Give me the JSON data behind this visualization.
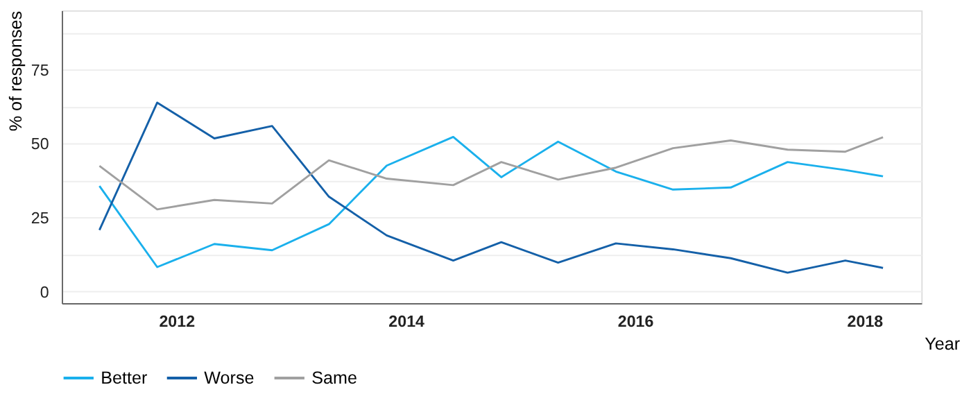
{
  "chart_data": {
    "type": "line",
    "xlabel": "Year",
    "ylabel": "% of responses",
    "x": [
      "2011-05",
      "2011-11",
      "2012-05",
      "2012-11",
      "2013-05",
      "2013-11",
      "2014-06",
      "2014-11",
      "2015-05",
      "2015-11",
      "2016-05",
      "2016-11",
      "2017-05",
      "2017-11",
      "2018-03"
    ],
    "series": [
      {
        "name": "Better",
        "color": "#1ab0ec",
        "values": [
          35.6,
          8.2,
          16,
          13.9,
          22.7,
          42.5,
          52.2,
          38.6,
          50.6,
          40.5,
          34.4,
          35.1,
          43.7,
          41,
          38.9
        ]
      },
      {
        "name": "Worse",
        "color": "#1460a8",
        "values": [
          20.7,
          63.8,
          51.7,
          55.9,
          32,
          18.9,
          10.4,
          16.6,
          9.7,
          16.2,
          14.2,
          11.2,
          6.3,
          10.4,
          7.9
        ]
      },
      {
        "name": "Same",
        "color": "#a0a0a0",
        "values": [
          42.4,
          27.7,
          30.9,
          29.7,
          44.3,
          38.1,
          35.9,
          43.7,
          37.8,
          41.8,
          48.4,
          51,
          47.9,
          47.2,
          52.1
        ]
      }
    ],
    "xlim": [
      "2011-01",
      "2018-07"
    ],
    "xticks": [
      "2012",
      "2014",
      "2016",
      "2018"
    ],
    "ylim": [
      -4,
      95
    ],
    "yticks": [
      0,
      {
        "value": 12.5,
        "label": null
      },
      25,
      {
        "value": 37.5,
        "label": null
      },
      50,
      {
        "value": 62.5,
        "label": null
      },
      75,
      {
        "value": 87.5,
        "label": null
      }
    ],
    "grid": "y",
    "legend": "bottom",
    "marker": "none",
    "line_style": "solid"
  }
}
